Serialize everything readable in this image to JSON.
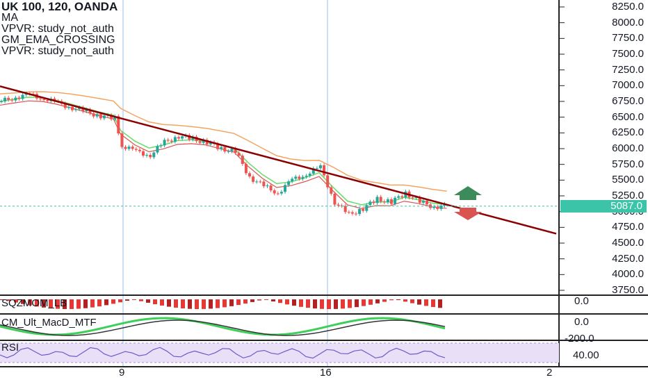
{
  "legend": {
    "symbol": "UK 100, 120, OANDA",
    "ma": "MA",
    "vpvr1": "VPVR: study_not_auth",
    "gm_ema": "GM_EMA_CROSSING",
    "vpvr2": "VPVR: study_not_auth"
  },
  "last_price": "5087.0",
  "y_axis_labels": [
    "8250.0",
    "8000.0",
    "7750.0",
    "7500.0",
    "7250.0",
    "7000.0",
    "6750.0",
    "6500.0",
    "6250.0",
    "6000.0",
    "5750.0",
    "5500.0",
    "5250.0",
    "5000.0",
    "4750.0",
    "4500.0",
    "4250.0",
    "4000.0",
    "3750.0"
  ],
  "x_axis_labels": [
    "9",
    "16",
    "2"
  ],
  "panes": {
    "sqzmom": {
      "label": "SQZMOM_LB",
      "axis_value": "0.0"
    },
    "cm_ult": {
      "label": "CM_Ult_MacD_MTF",
      "axis_values": [
        "0.0",
        "-200.0"
      ]
    },
    "rsi": {
      "label": "RSI",
      "axis_value": "40.00"
    }
  },
  "colors": {
    "up": "#26a69a",
    "down": "#ef5350",
    "trendline": "#8b0000",
    "ma": "#f4a460",
    "ema_fast": "#66dd66",
    "price_line": "#3bc4a8",
    "rsi_line": "#6a5acd",
    "rsi_band": "#e9e0f7"
  },
  "chart_data": {
    "type": "candlestick",
    "symbol": "UK 100",
    "timeframe": "120",
    "source": "OANDA",
    "x_labels": [
      "9",
      "16",
      "2"
    ],
    "ylim": [
      3600,
      8350
    ],
    "last_price": 5087.0,
    "close_path": [
      {
        "t": 0,
        "close": 6750
      },
      {
        "t": 2,
        "close": 6820
      },
      {
        "t": 4,
        "close": 6850
      },
      {
        "t": 6,
        "close": 6800
      },
      {
        "t": 8,
        "close": 6720
      },
      {
        "t": 10,
        "close": 6650
      },
      {
        "t": 12,
        "close": 6580
      },
      {
        "t": 14,
        "close": 6520
      },
      {
        "t": 16,
        "close": 6480
      },
      {
        "t": 17,
        "close": 6050
      },
      {
        "t": 19,
        "close": 5950
      },
      {
        "t": 21,
        "close": 5900
      },
      {
        "t": 23,
        "close": 6100
      },
      {
        "t": 25,
        "close": 6200
      },
      {
        "t": 27,
        "close": 6150
      },
      {
        "t": 29,
        "close": 6100
      },
      {
        "t": 31,
        "close": 6000
      },
      {
        "t": 33,
        "close": 5950
      },
      {
        "t": 35,
        "close": 5550
      },
      {
        "t": 37,
        "close": 5400
      },
      {
        "t": 39,
        "close": 5300
      },
      {
        "t": 41,
        "close": 5500
      },
      {
        "t": 43,
        "close": 5600
      },
      {
        "t": 45,
        "close": 5700
      },
      {
        "t": 47,
        "close": 5150
      },
      {
        "t": 49,
        "close": 4950
      },
      {
        "t": 51,
        "close": 5050
      },
      {
        "t": 53,
        "close": 5200
      },
      {
        "t": 55,
        "close": 5150
      },
      {
        "t": 57,
        "close": 5300
      },
      {
        "t": 59,
        "close": 5150
      },
      {
        "t": 61,
        "close": 5080
      },
      {
        "t": 63,
        "close": 5087
      }
    ],
    "trendline": [
      {
        "t": 0,
        "value": 6990
      },
      {
        "t": 80,
        "value": 4650
      }
    ],
    "signals": [
      {
        "type": "up-arrow",
        "value": 5310
      },
      {
        "type": "down-arrow",
        "value": 4980
      }
    ]
  }
}
